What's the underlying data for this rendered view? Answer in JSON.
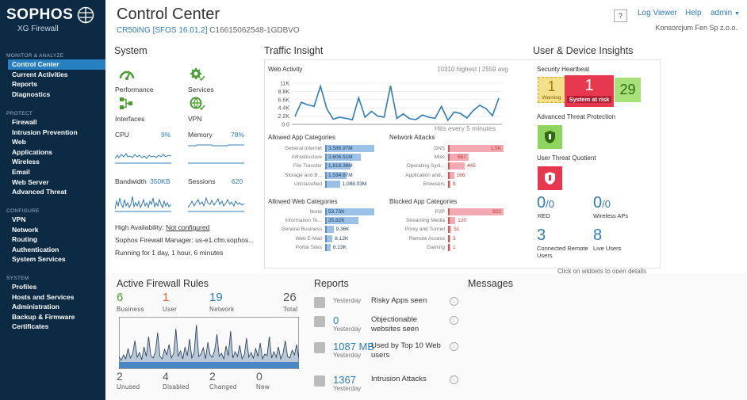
{
  "brand": {
    "name": "SOPHOS",
    "product": "XG Firewall"
  },
  "sidebar": {
    "sections": [
      {
        "heading": "MONITOR & ANALYZE",
        "items": [
          "Control Center",
          "Current Activities",
          "Reports",
          "Diagnostics"
        ]
      },
      {
        "heading": "PROTECT",
        "items": [
          "Firewall",
          "Intrusion Prevention",
          "Web",
          "Applications",
          "Wireless",
          "Email",
          "Web Server",
          "Advanced Threat"
        ]
      },
      {
        "heading": "CONFIGURE",
        "items": [
          "VPN",
          "Network",
          "Routing",
          "Authentication",
          "System Services"
        ]
      },
      {
        "heading": "SYSTEM",
        "items": [
          "Profiles",
          "Hosts and Services",
          "Administration",
          "Backup & Firmware",
          "Certificates"
        ]
      }
    ],
    "active": "Control Center"
  },
  "header": {
    "title": "Control Center",
    "device": "CR50iNG [SFOS 16.01.2]",
    "serial": "C16615062548-1GDBVO",
    "help": "?",
    "log_viewer": "Log Viewer",
    "help_link": "Help",
    "user": "admin",
    "org": "Konsorcjum Fen Sp z.o.o."
  },
  "system": {
    "title": "System",
    "performance": "Performance",
    "services": "Services",
    "interfaces": "Interfaces",
    "vpn": "VPN",
    "cpu_label": "CPU",
    "cpu_value": "9%",
    "memory_label": "Memory",
    "memory_value": "78%",
    "bandwidth_label": "Bandwidth",
    "bandwidth_value": "350KB",
    "sessions_label": "Sessions",
    "sessions_value": "620",
    "ha_label": "High Availability:",
    "ha_value": "Not configured",
    "sfm": "Sophos Firewall Manager: us-e1.cfm.sophos...",
    "uptime": "Running for 1 day, 1 hour, 6 minutes"
  },
  "traffic": {
    "title": "Traffic Insight",
    "web_activity": "Web Activity",
    "highest": "10310 highest | 2559 avg",
    "hits_note": "Hits every 5 minutes",
    "y_ticks": [
      "11K",
      "8.8K",
      "6.6K",
      "4.4K",
      "2.2K",
      "0.0"
    ],
    "web_series": [
      2100,
      5900,
      5200,
      4800,
      10200,
      4100,
      1400,
      1900,
      1600,
      1200,
      7100,
      1900,
      3500,
      2200,
      1900,
      10310,
      1600,
      2800,
      1500,
      1300,
      2500,
      1900,
      1600,
      4800,
      1100,
      3300,
      2900,
      1700,
      3700,
      5100,
      4200,
      2300,
      7000
    ],
    "allowed_app": {
      "title": "Allowed App Categories",
      "items": [
        {
          "label": "General Internet",
          "value": "3,586.97M",
          "pct": 1.0
        },
        {
          "label": "Infrastructure",
          "value": "2,606.51M",
          "pct": 0.73
        },
        {
          "label": "File Transfer",
          "value": "1,818.36M",
          "pct": 0.51
        },
        {
          "label": "Storage and B...",
          "value": "1,534.67M",
          "pct": 0.43
        },
        {
          "label": "Unclassified",
          "value": "1,088.03M",
          "pct": 0.3
        }
      ]
    },
    "network_attacks": {
      "title": "Network Attacks",
      "items": [
        {
          "label": "DNS",
          "value": "1.5K",
          "pct": 1.0
        },
        {
          "label": "Misc",
          "value": "557",
          "pct": 0.37
        },
        {
          "label": "Operating Syst...",
          "value": "445",
          "pct": 0.3
        },
        {
          "label": "Application and...",
          "value": "166",
          "pct": 0.11
        },
        {
          "label": "Browsers",
          "value": "8",
          "pct": 0.01
        }
      ]
    },
    "allowed_web": {
      "title": "Allowed Web Categories",
      "items": [
        {
          "label": "None",
          "value": "53.73K",
          "pct": 1.0
        },
        {
          "label": "Information Te...",
          "value": "35.82K",
          "pct": 0.67
        },
        {
          "label": "General Business",
          "value": "9.36K",
          "pct": 0.17
        },
        {
          "label": "Web E-Mail",
          "value": "8.12K",
          "pct": 0.15
        },
        {
          "label": "Portal Sites",
          "value": "6.13K",
          "pct": 0.11
        }
      ]
    },
    "blocked_app": {
      "title": "Blocked App Categories",
      "items": [
        {
          "label": "P2P",
          "value": "922",
          "pct": 1.0
        },
        {
          "label": "Streaming Media",
          "value": "120",
          "pct": 0.13
        },
        {
          "label": "Proxy and Tunnel",
          "value": "51",
          "pct": 0.06
        },
        {
          "label": "Remote Access",
          "value": "3",
          "pct": 0.01
        },
        {
          "label": "Gaming",
          "value": "1",
          "pct": 0.01
        }
      ]
    }
  },
  "user_device": {
    "title": "User & Device Insights",
    "heartbeat": "Security Heartbeat",
    "warning_count": "1",
    "warning_label": "Warning",
    "risk_count": "1",
    "risk_label": "System at risk",
    "ok_count": "29",
    "atp": "Advanced Threat Protection",
    "utq": "User Threat Quotient",
    "red_num": "0",
    "red_den": "/0",
    "red_label": "RED",
    "wap_num": "0",
    "wap_den": "/0",
    "wap_label": "Wireless APs",
    "remote_num": "3",
    "remote_label": "Connected Remote Users",
    "live_num": "8",
    "live_label": "Live Users",
    "click_hint": "Click on widgets to open details",
    "colors": {
      "warning": "#f5e08a",
      "risk": "#e8384f",
      "ok": "#a8e07a",
      "green": "#4a9e2f"
    }
  },
  "firewall_rules": {
    "title": "Active Firewall Rules",
    "top": [
      {
        "value": "6",
        "label": "Business",
        "color": "#4a9e2f"
      },
      {
        "value": "1",
        "label": "User",
        "color": "#e0662b"
      },
      {
        "value": "19",
        "label": "Network",
        "color": "#2e7bb9"
      },
      {
        "value": "26",
        "label": "Total",
        "color": "#555555"
      }
    ],
    "bottom": [
      {
        "value": "2",
        "label": "Unused"
      },
      {
        "value": "4",
        "label": "Disabled"
      },
      {
        "value": "2",
        "label": "Changed"
      },
      {
        "value": "0",
        "label": "New"
      }
    ]
  },
  "reports": {
    "title": "Reports",
    "items": [
      {
        "when": "Yesterday",
        "num": "",
        "desc": "Risky Apps seen"
      },
      {
        "when": "Yesterday",
        "num": "0",
        "desc": "Objectionable websites seen"
      },
      {
        "when": "Yesterday",
        "num": "1087 MB",
        "desc": "Used by Top 10 Web users"
      },
      {
        "when": "Yesterday",
        "num": "1367",
        "desc": "Intrusion Attacks"
      }
    ]
  },
  "messages": {
    "title": "Messages"
  }
}
